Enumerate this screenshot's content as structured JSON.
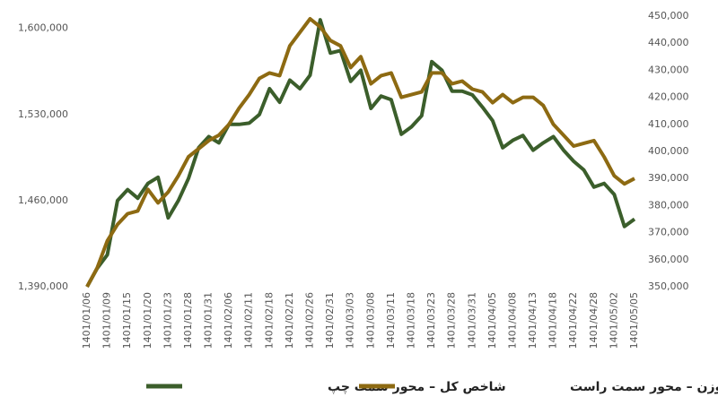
{
  "chart_data": {
    "type": "line",
    "categories": [
      "1401/01/06",
      null,
      "1401/01/09",
      null,
      "1401/01/15",
      null,
      "1401/01/20",
      null,
      "1401/01/23",
      null,
      "1401/01/28",
      null,
      "1401/01/31",
      null,
      "1401/02/06",
      null,
      "1401/02/11",
      null,
      "1401/02/18",
      null,
      "1401/02/21",
      null,
      "1401/02/26",
      null,
      "1401/02/31",
      null,
      "1401/03/03",
      null,
      "1401/03/08",
      null,
      "1401/03/11",
      null,
      "1401/03/18",
      null,
      "1401/03/23",
      null,
      "1401/03/28",
      null,
      "1401/03/31",
      null,
      "1401/04/05",
      null,
      "1401/04/08",
      null,
      "1401/04/13",
      null,
      "1401/04/18",
      null,
      "1401/04/22",
      null,
      "1401/04/28",
      null,
      "1401/05/02",
      null,
      "1401/05/05"
    ],
    "series": [
      {
        "name": "شاخص کل – محور سمت چپ",
        "color": "#3b5e2b",
        "values": [
          1390000,
          1405000,
          1416000,
          1460000,
          1469000,
          1462000,
          1474000,
          1479000,
          1446000,
          1460000,
          1478000,
          1503000,
          1512000,
          1507000,
          1522000,
          1522000,
          1523000,
          1530000,
          1551000,
          1540000,
          1558000,
          1551000,
          1562000,
          1607000,
          1580000,
          1582000,
          1557000,
          1566000,
          1535000,
          1545000,
          1542000,
          1514000,
          1520000,
          1529000,
          1573000,
          1566000,
          1549000,
          1549000,
          1546000,
          1536000,
          1525000,
          1503000,
          1509000,
          1513000,
          1501000,
          1507000,
          1512000,
          1501000,
          1492000,
          1485000,
          1471000,
          1474000,
          1465000,
          1439000,
          1445000
        ]
      },
      {
        "name": "شاخص هموزن – محور سمت راست",
        "color": "#8d6a12",
        "axis": "y2",
        "values": [
          350000,
          357000,
          367000,
          373000,
          377000,
          378000,
          386000,
          381000,
          385000,
          391000,
          398000,
          401000,
          404000,
          406000,
          410000,
          416000,
          421000,
          427000,
          429000,
          428000,
          439000,
          444000,
          449000,
          446000,
          441000,
          439000,
          431000,
          435000,
          425000,
          428000,
          429000,
          420000,
          421000,
          422000,
          429000,
          429000,
          425000,
          426000,
          423000,
          422000,
          418000,
          421000,
          418000,
          420000,
          420000,
          417000,
          410000,
          406000,
          402000,
          403000,
          404000,
          398000,
          391000,
          388000,
          390000
        ]
      }
    ],
    "ylim": [
      1390000,
      1610000
    ],
    "yticks": [
      {
        "value": 1390000,
        "label": "1,390,000"
      },
      {
        "value": 1460000,
        "label": "1,460,000"
      },
      {
        "value": 1530000,
        "label": "1,530,000"
      },
      {
        "value": 1600000,
        "label": "1,600,000"
      }
    ],
    "y2lim": [
      350000,
      450000
    ],
    "y2ticks": [
      {
        "value": 350000,
        "label": "350,000"
      },
      {
        "value": 360000,
        "label": "360,000"
      },
      {
        "value": 370000,
        "label": "370,000"
      },
      {
        "value": 380000,
        "label": "380,000"
      },
      {
        "value": 390000,
        "label": "390,000"
      },
      {
        "value": 400000,
        "label": "400,000"
      },
      {
        "value": 410000,
        "label": "410,000"
      },
      {
        "value": 420000,
        "label": "420,000"
      },
      {
        "value": 430000,
        "label": "430,000"
      },
      {
        "value": 440000,
        "label": "440,000"
      },
      {
        "value": 450000,
        "label": "450,000"
      }
    ],
    "grid": false
  }
}
